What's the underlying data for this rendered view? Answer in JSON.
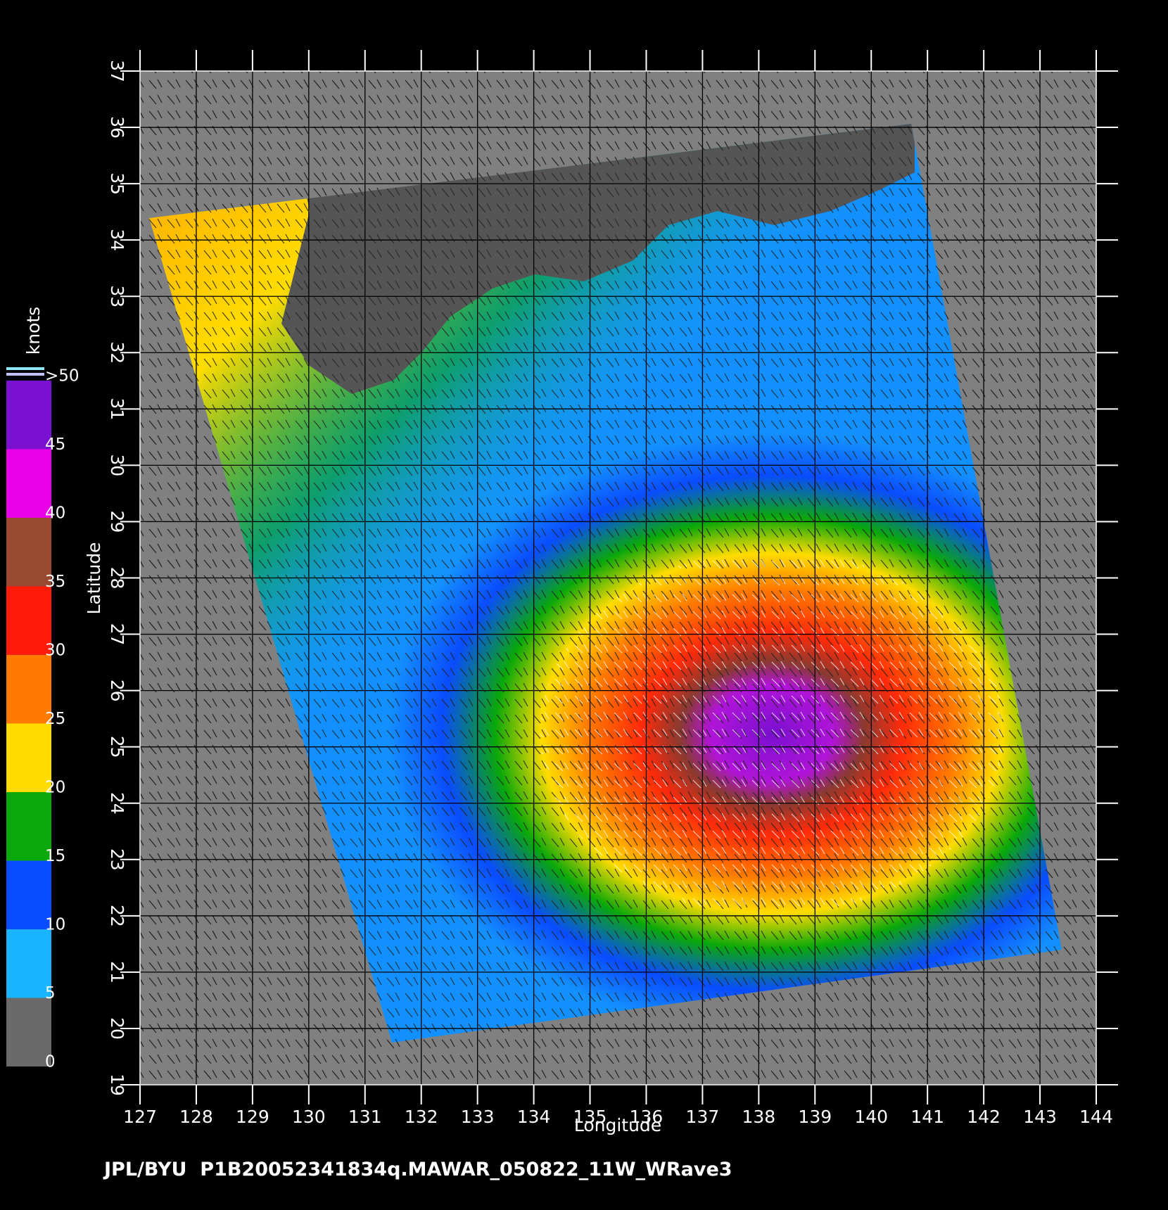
{
  "chart_data": {
    "type": "map",
    "xlabel": "Longitude",
    "ylabel": "Latitude",
    "xlim": [
      127,
      144
    ],
    "ylim": [
      19,
      37
    ],
    "xticks": [
      127,
      128,
      129,
      130,
      131,
      132,
      133,
      134,
      135,
      136,
      137,
      138,
      139,
      140,
      141,
      142,
      143,
      144
    ],
    "yticks": [
      19,
      20,
      21,
      22,
      23,
      24,
      25,
      26,
      27,
      28,
      29,
      30,
      31,
      32,
      33,
      34,
      35,
      36,
      37
    ],
    "grid": true,
    "colorbar": {
      "label": "knots",
      "ticks": [
        0,
        5,
        10,
        15,
        20,
        25,
        30,
        35,
        40,
        45,
        {
          "value": 50,
          "label": ">50"
        }
      ],
      "colors": [
        "#6a6a6a",
        "#19b4ff",
        "#0a4cff",
        "#0aa80a",
        "#ffdc00",
        "#ff7a00",
        "#ff1a0a",
        "#9a4a30",
        "#e800e8",
        "#7a10d0"
      ]
    }
  },
  "footer": "JPL/BYU  P1B20052341834q.MAWAR_050822_11W_WRave3"
}
